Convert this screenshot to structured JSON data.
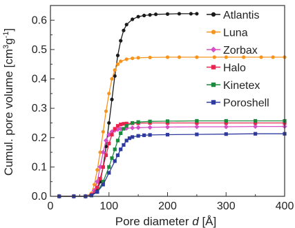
{
  "chart_data": {
    "type": "line",
    "xlabel": {
      "prefix": "Pore diameter ",
      "var": "d",
      "suffix": " [Å]"
    },
    "ylabel": {
      "prefix": "Cumul. pore volume [cm",
      "sup1": "3",
      "mid": "g",
      "sup2": "-1",
      "suffix": "]"
    },
    "xlim": [
      0,
      400
    ],
    "ylim": [
      0,
      0.65
    ],
    "xticks": [
      0,
      100,
      200,
      300,
      400
    ],
    "xtick_labels": [
      "0",
      "100",
      "200",
      "300",
      "400"
    ],
    "yticks": [
      0.0,
      0.1,
      0.2,
      0.3,
      0.4,
      0.5,
      0.6
    ],
    "ytick_labels": [
      "0.0",
      "0.1",
      "0.2",
      "0.3",
      "0.4",
      "0.5",
      "0.6"
    ],
    "legend_position": "top-right",
    "grid": false,
    "series": [
      {
        "name": "Atlantis",
        "color": "#1a1a1a",
        "marker": "circle",
        "x": [
          15,
          40,
          60,
          70,
          80,
          85,
          90,
          95,
          100,
          105,
          110,
          115,
          120,
          125,
          130,
          140,
          150,
          160,
          170,
          180,
          200,
          220,
          240,
          250
        ],
        "y": [
          0.0,
          0.0,
          0.0,
          0.003,
          0.02,
          0.05,
          0.1,
          0.17,
          0.25,
          0.33,
          0.41,
          0.48,
          0.53,
          0.565,
          0.585,
          0.603,
          0.612,
          0.616,
          0.618,
          0.62,
          0.621,
          0.622,
          0.622,
          0.622
        ]
      },
      {
        "name": "Luna",
        "color": "#f7941d",
        "marker": "circle",
        "x": [
          15,
          40,
          60,
          70,
          75,
          80,
          85,
          90,
          95,
          100,
          105,
          110,
          115,
          120,
          130,
          140,
          150,
          170,
          200,
          220,
          250,
          280,
          300,
          330,
          360,
          380,
          400
        ],
        "y": [
          0.0,
          0.0,
          0.0,
          0.01,
          0.04,
          0.09,
          0.15,
          0.22,
          0.29,
          0.35,
          0.4,
          0.43,
          0.45,
          0.46,
          0.467,
          0.47,
          0.472,
          0.473,
          0.474,
          0.474,
          0.474,
          0.474,
          0.474,
          0.474,
          0.474,
          0.474,
          0.474
        ]
      },
      {
        "name": "Zorbax",
        "color": "#d64fc7",
        "marker": "diamond",
        "x": [
          15,
          40,
          60,
          70,
          75,
          80,
          85,
          90,
          95,
          100,
          105,
          110,
          115,
          120,
          130,
          140,
          150,
          170,
          200,
          250,
          300,
          350,
          400
        ],
        "y": [
          0.0,
          0.0,
          0.0,
          0.005,
          0.02,
          0.05,
          0.1,
          0.15,
          0.19,
          0.21,
          0.22,
          0.225,
          0.228,
          0.23,
          0.232,
          0.233,
          0.234,
          0.235,
          0.236,
          0.237,
          0.237,
          0.238,
          0.238
        ]
      },
      {
        "name": "Halo",
        "color": "#e8244f",
        "marker": "square",
        "x": [
          15,
          40,
          60,
          70,
          80,
          85,
          90,
          95,
          100,
          105,
          110,
          115,
          120,
          125,
          130,
          140,
          150,
          170,
          200,
          250,
          300,
          350,
          400
        ],
        "y": [
          0.0,
          0.0,
          0.0,
          0.005,
          0.03,
          0.06,
          0.1,
          0.14,
          0.18,
          0.21,
          0.23,
          0.24,
          0.245,
          0.247,
          0.248,
          0.249,
          0.249,
          0.25,
          0.25,
          0.25,
          0.25,
          0.25,
          0.25
        ]
      },
      {
        "name": "Kinetex",
        "color": "#1b8a3c",
        "marker": "square",
        "x": [
          15,
          40,
          60,
          70,
          80,
          90,
          100,
          105,
          110,
          115,
          120,
          125,
          130,
          140,
          150,
          170,
          200,
          250,
          300,
          350,
          400
        ],
        "y": [
          0.0,
          0.0,
          0.0,
          0.003,
          0.015,
          0.05,
          0.1,
          0.13,
          0.16,
          0.19,
          0.215,
          0.23,
          0.24,
          0.25,
          0.253,
          0.255,
          0.256,
          0.257,
          0.257,
          0.257,
          0.257
        ]
      },
      {
        "name": "Poroshell",
        "color": "#2e3a9e",
        "marker": "square",
        "x": [
          15,
          40,
          60,
          70,
          80,
          90,
          100,
          110,
          115,
          120,
          125,
          130,
          135,
          140,
          150,
          160,
          170,
          200,
          250,
          300,
          350,
          400
        ],
        "y": [
          0.0,
          0.0,
          0.0,
          0.003,
          0.015,
          0.04,
          0.08,
          0.12,
          0.14,
          0.16,
          0.175,
          0.19,
          0.198,
          0.202,
          0.206,
          0.208,
          0.209,
          0.21,
          0.211,
          0.212,
          0.213,
          0.213
        ]
      }
    ]
  }
}
